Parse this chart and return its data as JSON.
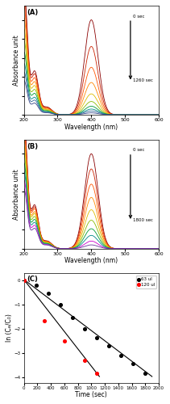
{
  "panel_A": {
    "label": "(A)",
    "xlabel": "Wavelength (nm)",
    "ylabel": "Absorbance unit",
    "annotation_top": "0 sec",
    "annotation_bot": "1260 sec",
    "colors": [
      "#8B0000",
      "#cc2200",
      "#ff5500",
      "#ff8800",
      "#ddbb00",
      "#88bb00",
      "#009933",
      "#008888",
      "#336699",
      "#334488"
    ],
    "scales2": [
      1.0,
      0.72,
      0.5,
      0.34,
      0.22,
      0.14,
      0.09,
      0.06,
      0.04,
      0.02
    ],
    "scales1": [
      0.45,
      0.42,
      0.38,
      0.34,
      0.3,
      0.26,
      0.22,
      0.18,
      0.15,
      0.12
    ]
  },
  "panel_B": {
    "label": "(B)",
    "xlabel": "Wavelength (nm)",
    "ylabel": "Absorbance unit",
    "annotation_top": "0 sec",
    "annotation_bot": "1800 sec",
    "colors": [
      "#8B0000",
      "#cc2200",
      "#ff5500",
      "#ff8800",
      "#ddbb00",
      "#88bb00",
      "#009933",
      "#008888",
      "#cc00cc",
      "#663399"
    ],
    "scales2": [
      1.0,
      0.84,
      0.68,
      0.54,
      0.41,
      0.3,
      0.21,
      0.14,
      0.08,
      0.04
    ],
    "scales1": [
      0.45,
      0.43,
      0.41,
      0.38,
      0.36,
      0.33,
      0.3,
      0.27,
      0.24,
      0.21
    ]
  },
  "panel_C": {
    "label": "(C)",
    "xlabel": "Time (sec)",
    "ylabel": "ln (Cₔ/C₀)",
    "xmin": 0,
    "xmax": 2000,
    "ymin": -4.2,
    "ymax": 0.3,
    "xticks": [
      0,
      200,
      400,
      600,
      800,
      1000,
      1200,
      1400,
      1600,
      1800,
      2000
    ],
    "yticks": [
      0,
      -1,
      -2,
      -3,
      -4
    ],
    "black_points_x": [
      0,
      180,
      360,
      540,
      720,
      900,
      1080,
      1260,
      1440,
      1620,
      1800
    ],
    "black_points_y": [
      0,
      -0.18,
      -0.52,
      -1.0,
      -1.52,
      -1.98,
      -2.35,
      -2.68,
      -3.08,
      -3.42,
      -3.82
    ],
    "red_points_x": [
      0,
      300,
      600,
      900,
      1080
    ],
    "red_points_y": [
      0,
      -1.65,
      -2.5,
      -3.3,
      -3.82
    ],
    "black_line_x": [
      0,
      1900
    ],
    "black_line_y": [
      0.05,
      -3.95
    ],
    "red_line_x": [
      0,
      1120
    ],
    "red_line_y": [
      0.05,
      -3.95
    ],
    "legend_black": "63 ul",
    "legend_red": "120 ul"
  },
  "bg_color": "#ffffff",
  "spine_color": "#aaaaaa"
}
